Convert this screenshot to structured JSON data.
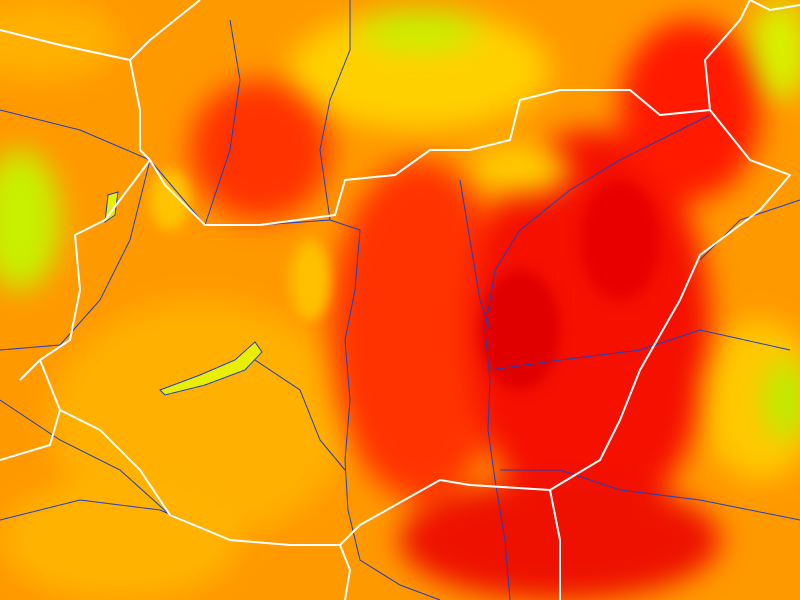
{
  "map": {
    "type": "temperature heatmap",
    "colors": {
      "base": "#ff9900",
      "hot": "#ff2a00",
      "hottest": "#e60000",
      "warm": "#ffb300",
      "mild": "#ffd000",
      "cool": "#c8f000",
      "coolest": "#88ee22",
      "border": "#ffffff",
      "river": "#1f3fbf",
      "lake": "#e8f000"
    }
  }
}
